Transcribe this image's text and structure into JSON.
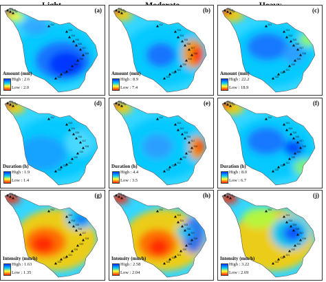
{
  "columns": [
    "Light",
    "Moderate",
    "Heavy"
  ],
  "units": {
    "amount": "Amount (mm)",
    "duration": "Duration (h)",
    "intensity": "Intensity (mm/h)"
  },
  "panels": [
    {
      "id": "a",
      "label": "(a)",
      "legend_title": "Amount (mm)",
      "high": "High : 2.6",
      "low": "Low : 2.0"
    },
    {
      "id": "b",
      "label": "(b)",
      "legend_title": "Amount (mm)",
      "high": "High : 8.9",
      "low": "Low : 7.4"
    },
    {
      "id": "c",
      "label": "(c)",
      "legend_title": "Amount (mm)",
      "high": "High : 22.2",
      "low": "Low : 18.9"
    },
    {
      "id": "d",
      "label": "(d)",
      "legend_title": "Duration (h)",
      "high": "High : 1.9",
      "low": "Low : 1.4"
    },
    {
      "id": "e",
      "label": "(e)",
      "legend_title": "Duration (h)",
      "high": "High : 4.4",
      "low": "Low : 3.5"
    },
    {
      "id": "f",
      "label": "(f)",
      "legend_title": "Duration (h)",
      "high": "High : 8.0",
      "low": "Low : 6.7"
    },
    {
      "id": "g",
      "label": "(g)",
      "legend_title": "Intensity (mm/h)",
      "high": "High : 1.63",
      "low": "Low : 1.35"
    },
    {
      "id": "h",
      "label": "(h)",
      "legend_title": "Intensity (mm/h)",
      "high": "High : 2.58",
      "low": "Low : 2.04"
    },
    {
      "id": "i",
      "label": "(j)",
      "legend_title": "Intensity (mm/h)",
      "high": "High : 3.22",
      "low": "Low : 2.69"
    }
  ],
  "station_labels": [
    "S34",
    "S35",
    "S8",
    "S12",
    "S13",
    "S14",
    "S15",
    "S16",
    "S17",
    "S18",
    "S19",
    "S20",
    "S21",
    "S22",
    "S23"
  ],
  "colors": {
    "high": "#0033ff",
    "mid_high": "#00c8ff",
    "mid_low": "#ffff33",
    "low": "#ff2200"
  }
}
